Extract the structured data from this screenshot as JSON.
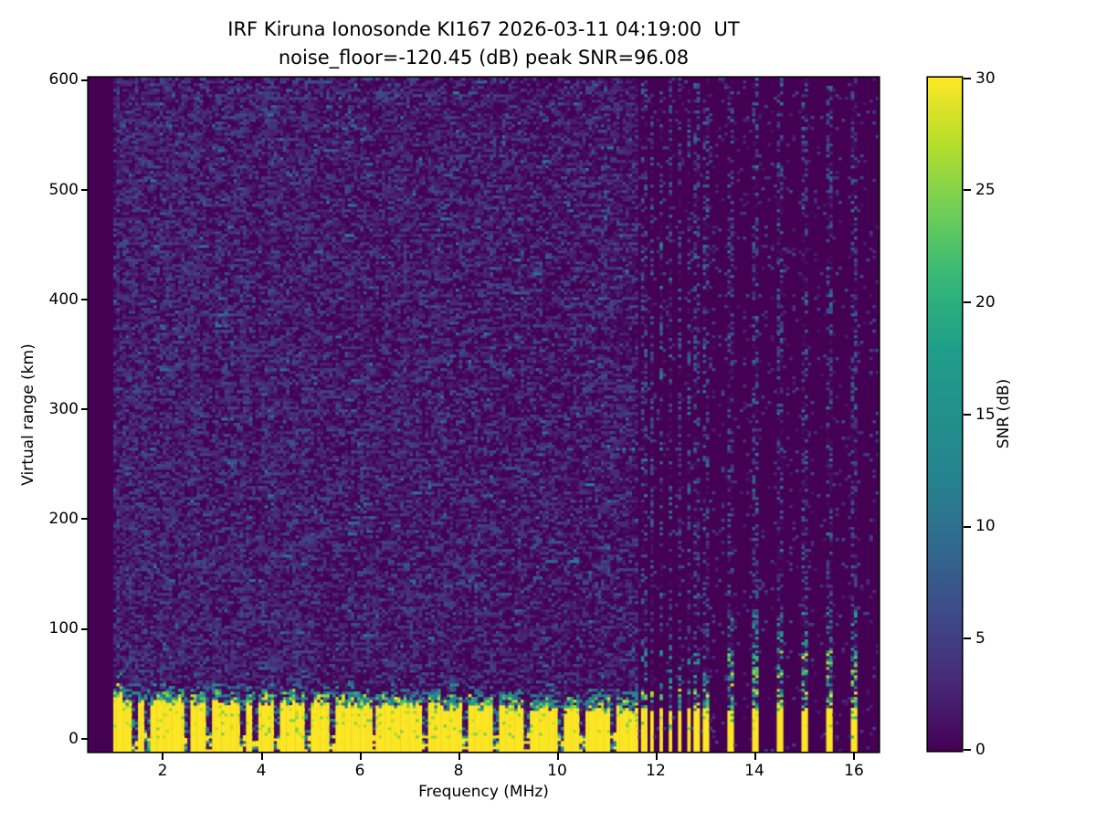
{
  "chart_data": {
    "type": "heatmap",
    "title": "IRF Kiruna Ionosonde KI167 2026-03-11 04:19:00  UT",
    "subtitle": "noise_floor=-120.45 (dB) peak SNR=96.08",
    "xlabel": "Frequency (MHz)",
    "ylabel": "Virtual range (km)",
    "colorbar_label": "SNR (dB)",
    "xlim": [
      0.5,
      16.5
    ],
    "ylim": [
      -12,
      602
    ],
    "clim": [
      0,
      30
    ],
    "xticks": [
      2,
      4,
      6,
      8,
      10,
      12,
      14,
      16
    ],
    "yticks": [
      600,
      500,
      400,
      300,
      200,
      100,
      0
    ],
    "colorbar_ticks": [
      30,
      25,
      20,
      15,
      10,
      5,
      0
    ],
    "legend_position": "right-colorbar",
    "grid": "off",
    "colormap": "viridis",
    "colormap_stops": [
      [
        0.0,
        68,
        1,
        84
      ],
      [
        0.1,
        72,
        40,
        120
      ],
      [
        0.2,
        62,
        73,
        137
      ],
      [
        0.3,
        49,
        104,
        142
      ],
      [
        0.4,
        38,
        130,
        142
      ],
      [
        0.5,
        33,
        145,
        140
      ],
      [
        0.6,
        31,
        158,
        137
      ],
      [
        0.7,
        53,
        183,
        121
      ],
      [
        0.8,
        110,
        206,
        88
      ],
      [
        0.9,
        181,
        222,
        43
      ],
      [
        1.0,
        253,
        231,
        37
      ]
    ],
    "render": {
      "seed": 42,
      "grid_cols": 256,
      "grid_rows": 246,
      "data_freq_min": 1.0,
      "echo_freq_max": 11.63,
      "echo_top_km_start": 34,
      "echo_top_km_end": 26,
      "echo_transition_km": 9,
      "notch_freqs": [
        1.45,
        1.68,
        2.5,
        2.95,
        3.6,
        3.9,
        4.32,
        4.92,
        5.45,
        6.28,
        7.32,
        8.1,
        8.75,
        9.35,
        10.05,
        10.5,
        11.1
      ],
      "notch_halfwidth_mhz": 0.06,
      "stripe_freqs": [
        11.73,
        11.91,
        12.1,
        12.28,
        12.47,
        12.65,
        12.82,
        13.0,
        13.48,
        13.98,
        14.5,
        15.0,
        15.5,
        16.02
      ],
      "stripe_halfwidth_mhz": 0.055,
      "stripe_yellow_top_km": 24,
      "stripe_dense_speckle_top_km": 45,
      "stripe_sparse_speckle_top_km": 80,
      "noise_speckle_prob_low_freq": 0.55,
      "noise_speckle_prob_high_freq": 0.33,
      "quiet_speckle_prob": 0.04,
      "rfi_dot_prob": 0.24
    }
  }
}
